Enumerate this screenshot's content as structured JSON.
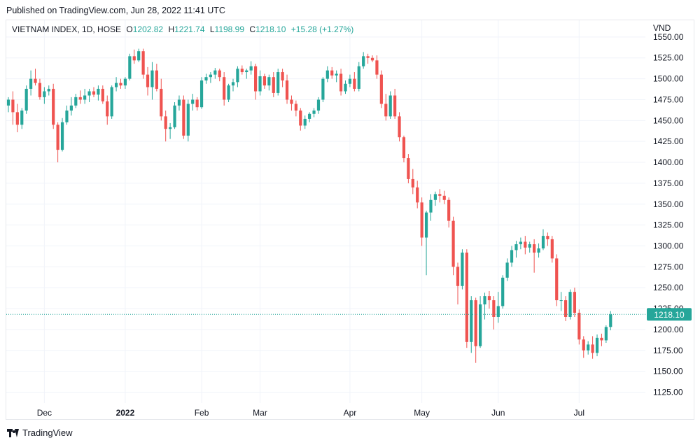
{
  "header": {
    "published": "Published on TradingView.com, Jun 28, 2022 11:41 UTC"
  },
  "legend": {
    "symbol": "VIETNAM INDEX, 1D, HOSE",
    "o_label": "O",
    "o_value": "1202.82",
    "h_label": "H",
    "h_value": "1221.74",
    "l_label": "L",
    "l_value": "1198.99",
    "c_label": "C",
    "c_value": "1218.10",
    "change": "+15.28 (+1.27%)"
  },
  "footer": {
    "brand": "TradingView"
  },
  "colors": {
    "up": "#26a69a",
    "down": "#ef5350",
    "grid": "#f0f3fa",
    "last": "#26a69a"
  },
  "chart_data": {
    "type": "candlestick",
    "currency_label": "VND",
    "y_ticks": [
      1125,
      1150,
      1175,
      1200,
      1225,
      1250,
      1275,
      1300,
      1325,
      1350,
      1375,
      1400,
      1425,
      1450,
      1475,
      1500,
      1525,
      1550
    ],
    "ylim": [
      1112,
      1570
    ],
    "last_price": 1218.1,
    "last_label": "1218.10",
    "x_labels": [
      {
        "label": "Dec",
        "index": 8
      },
      {
        "label": "2022",
        "index": 26
      },
      {
        "label": "Feb",
        "index": 43
      },
      {
        "label": "Mar",
        "index": 56
      },
      {
        "label": "Apr",
        "index": 76
      },
      {
        "label": "May",
        "index": 92
      },
      {
        "label": "Jun",
        "index": 109
      },
      {
        "label": "Jul",
        "index": 127
      }
    ],
    "ohlc": [
      [
        1468,
        1478,
        1460,
        1475
      ],
      [
        1475,
        1485,
        1445,
        1460
      ],
      [
        1460,
        1470,
        1436,
        1445
      ],
      [
        1445,
        1465,
        1440,
        1462
      ],
      [
        1462,
        1492,
        1458,
        1488
      ],
      [
        1488,
        1510,
        1480,
        1500
      ],
      [
        1500,
        1512,
        1492,
        1495
      ],
      [
        1495,
        1500,
        1475,
        1478
      ],
      [
        1478,
        1490,
        1470,
        1485
      ],
      [
        1485,
        1492,
        1480,
        1488
      ],
      [
        1488,
        1494,
        1440,
        1445
      ],
      [
        1445,
        1448,
        1400,
        1415
      ],
      [
        1415,
        1453,
        1413,
        1448
      ],
      [
        1448,
        1468,
        1445,
        1462
      ],
      [
        1462,
        1478,
        1456,
        1468
      ],
      [
        1468,
        1482,
        1465,
        1478
      ],
      [
        1478,
        1486,
        1470,
        1475
      ],
      [
        1475,
        1488,
        1470,
        1480
      ],
      [
        1480,
        1488,
        1472,
        1485
      ],
      [
        1485,
        1490,
        1478,
        1481
      ],
      [
        1481,
        1492,
        1474,
        1488
      ],
      [
        1488,
        1492,
        1470,
        1473
      ],
      [
        1473,
        1480,
        1445,
        1455
      ],
      [
        1455,
        1492,
        1452,
        1490
      ],
      [
        1490,
        1502,
        1485,
        1495
      ],
      [
        1495,
        1500,
        1488,
        1492
      ],
      [
        1492,
        1502,
        1488,
        1500
      ],
      [
        1500,
        1530,
        1498,
        1527
      ],
      [
        1527,
        1535,
        1518,
        1522
      ],
      [
        1522,
        1536,
        1520,
        1533
      ],
      [
        1533,
        1536,
        1500,
        1505
      ],
      [
        1505,
        1514,
        1480,
        1490
      ],
      [
        1490,
        1520,
        1475,
        1510
      ],
      [
        1510,
        1518,
        1485,
        1488
      ],
      [
        1488,
        1500,
        1450,
        1455
      ],
      [
        1455,
        1462,
        1425,
        1440
      ],
      [
        1440,
        1447,
        1428,
        1442
      ],
      [
        1442,
        1472,
        1440,
        1468
      ],
      [
        1468,
        1480,
        1462,
        1475
      ],
      [
        1475,
        1480,
        1428,
        1432
      ],
      [
        1432,
        1475,
        1425,
        1470
      ],
      [
        1470,
        1482,
        1462,
        1475
      ],
      [
        1475,
        1478,
        1462,
        1466
      ],
      [
        1466,
        1502,
        1464,
        1498
      ],
      [
        1498,
        1506,
        1494,
        1502
      ],
      [
        1502,
        1508,
        1495,
        1505
      ],
      [
        1505,
        1513,
        1500,
        1510
      ],
      [
        1510,
        1512,
        1497,
        1502
      ],
      [
        1502,
        1508,
        1468,
        1475
      ],
      [
        1475,
        1494,
        1472,
        1492
      ],
      [
        1492,
        1500,
        1485,
        1496
      ],
      [
        1496,
        1515,
        1490,
        1512
      ],
      [
        1512,
        1516,
        1505,
        1508
      ],
      [
        1508,
        1512,
        1500,
        1510
      ],
      [
        1510,
        1521,
        1505,
        1515
      ],
      [
        1515,
        1518,
        1475,
        1485
      ],
      [
        1485,
        1510,
        1480,
        1503
      ],
      [
        1503,
        1506,
        1488,
        1492
      ],
      [
        1492,
        1505,
        1486,
        1502
      ],
      [
        1502,
        1508,
        1478,
        1483
      ],
      [
        1483,
        1512,
        1480,
        1508
      ],
      [
        1508,
        1512,
        1490,
        1498
      ],
      [
        1498,
        1505,
        1470,
        1475
      ],
      [
        1475,
        1480,
        1462,
        1470
      ],
      [
        1470,
        1474,
        1455,
        1462
      ],
      [
        1462,
        1465,
        1438,
        1444
      ],
      [
        1444,
        1456,
        1440,
        1452
      ],
      [
        1452,
        1460,
        1448,
        1458
      ],
      [
        1458,
        1465,
        1454,
        1462
      ],
      [
        1462,
        1478,
        1458,
        1475
      ],
      [
        1475,
        1502,
        1472,
        1500
      ],
      [
        1500,
        1515,
        1496,
        1510
      ],
      [
        1510,
        1514,
        1500,
        1504
      ],
      [
        1504,
        1510,
        1496,
        1506
      ],
      [
        1506,
        1512,
        1480,
        1485
      ],
      [
        1485,
        1498,
        1482,
        1494
      ],
      [
        1494,
        1505,
        1490,
        1500
      ],
      [
        1500,
        1508,
        1485,
        1488
      ],
      [
        1488,
        1520,
        1485,
        1515
      ],
      [
        1515,
        1532,
        1512,
        1527
      ],
      [
        1527,
        1530,
        1518,
        1525
      ],
      [
        1525,
        1528,
        1520,
        1522
      ],
      [
        1522,
        1528,
        1500,
        1505
      ],
      [
        1505,
        1510,
        1465,
        1470
      ],
      [
        1470,
        1482,
        1450,
        1455
      ],
      [
        1455,
        1485,
        1452,
        1480
      ],
      [
        1480,
        1488,
        1452,
        1455
      ],
      [
        1455,
        1460,
        1425,
        1430
      ],
      [
        1430,
        1432,
        1400,
        1405
      ],
      [
        1405,
        1410,
        1375,
        1380
      ],
      [
        1380,
        1392,
        1362,
        1370
      ],
      [
        1370,
        1378,
        1345,
        1352
      ],
      [
        1352,
        1358,
        1300,
        1310
      ],
      [
        1310,
        1342,
        1265,
        1340
      ],
      [
        1340,
        1362,
        1330,
        1355
      ],
      [
        1355,
        1365,
        1348,
        1362
      ],
      [
        1362,
        1368,
        1352,
        1360
      ],
      [
        1360,
        1366,
        1350,
        1355
      ],
      [
        1355,
        1358,
        1322,
        1330
      ],
      [
        1330,
        1335,
        1265,
        1275
      ],
      [
        1275,
        1280,
        1230,
        1252
      ],
      [
        1252,
        1296,
        1248,
        1292
      ],
      [
        1292,
        1296,
        1178,
        1185
      ],
      [
        1185,
        1240,
        1172,
        1235
      ],
      [
        1235,
        1238,
        1160,
        1180
      ],
      [
        1180,
        1240,
        1178,
        1230
      ],
      [
        1230,
        1244,
        1212,
        1240
      ],
      [
        1240,
        1246,
        1225,
        1235
      ],
      [
        1235,
        1240,
        1200,
        1215
      ],
      [
        1215,
        1245,
        1208,
        1228
      ],
      [
        1228,
        1265,
        1225,
        1262
      ],
      [
        1262,
        1285,
        1258,
        1280
      ],
      [
        1280,
        1300,
        1275,
        1295
      ],
      [
        1295,
        1306,
        1286,
        1302
      ],
      [
        1302,
        1310,
        1296,
        1305
      ],
      [
        1305,
        1312,
        1290,
        1298
      ],
      [
        1298,
        1305,
        1292,
        1302
      ],
      [
        1302,
        1308,
        1268,
        1292
      ],
      [
        1292,
        1303,
        1286,
        1297
      ],
      [
        1297,
        1320,
        1295,
        1312
      ],
      [
        1312,
        1316,
        1300,
        1308
      ],
      [
        1308,
        1312,
        1280,
        1285
      ],
      [
        1285,
        1290,
        1228,
        1235
      ],
      [
        1235,
        1245,
        1222,
        1235
      ],
      [
        1235,
        1240,
        1210,
        1215
      ],
      [
        1215,
        1248,
        1212,
        1245
      ],
      [
        1245,
        1250,
        1215,
        1220
      ],
      [
        1220,
        1224,
        1182,
        1188
      ],
      [
        1188,
        1192,
        1166,
        1175
      ],
      [
        1175,
        1186,
        1170,
        1182
      ],
      [
        1182,
        1192,
        1165,
        1172
      ],
      [
        1172,
        1194,
        1168,
        1190
      ],
      [
        1190,
        1195,
        1180,
        1187
      ],
      [
        1187,
        1205,
        1184,
        1203
      ],
      [
        1203,
        1222,
        1199,
        1218
      ]
    ]
  }
}
